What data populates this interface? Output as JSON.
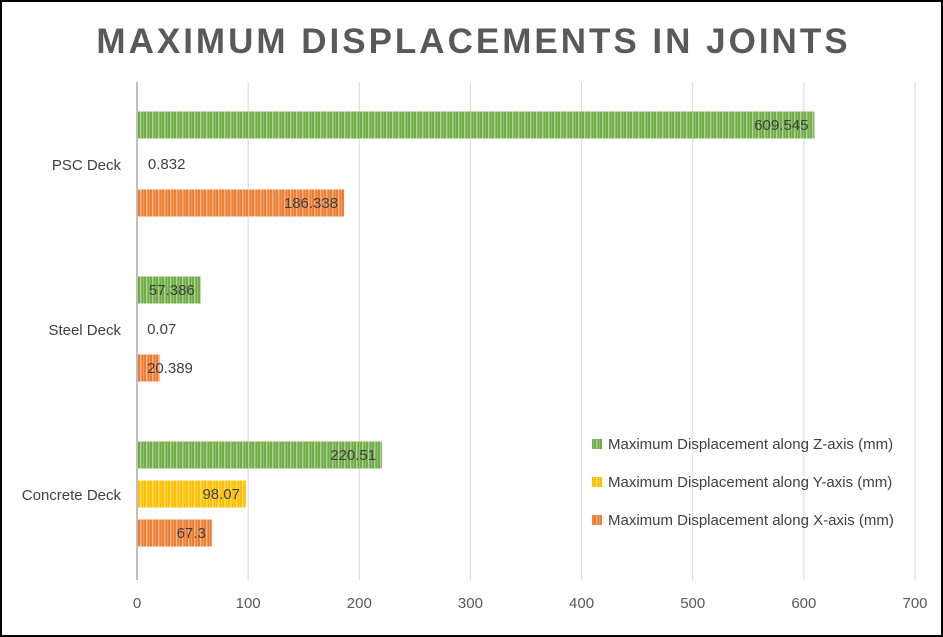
{
  "chart_data": {
    "type": "bar",
    "orientation": "horizontal",
    "title": "MAXIMUM DISPLACEMENTS IN JOINTS",
    "categories": [
      "PSC Deck",
      "Steel Deck",
      "Concrete Deck"
    ],
    "series": [
      {
        "name": "Maximum Displacement along Z-axis (mm)",
        "color": "#70AD47",
        "values": [
          609.545,
          57.386,
          220.51
        ],
        "labels": [
          "609.545",
          "57.386",
          "220.51"
        ]
      },
      {
        "name": "Maximum Displacement along Y-axis (mm)",
        "color": "#FFC000",
        "values": [
          0.832,
          0.07,
          98.07
        ],
        "labels": [
          "0.832",
          "0.07",
          "98.07"
        ]
      },
      {
        "name": "Maximum Displacement along X-axis (mm)",
        "color": "#ED7D31",
        "values": [
          186.338,
          20.389,
          67.3
        ],
        "labels": [
          "186.338",
          "20.389",
          "67.3"
        ]
      }
    ],
    "xlim": [
      0,
      700
    ],
    "xticks": [
      0,
      100,
      200,
      300,
      400,
      500,
      600,
      700
    ],
    "grid": true,
    "legend_position": "bottom-right",
    "xlabel": "",
    "ylabel": ""
  }
}
